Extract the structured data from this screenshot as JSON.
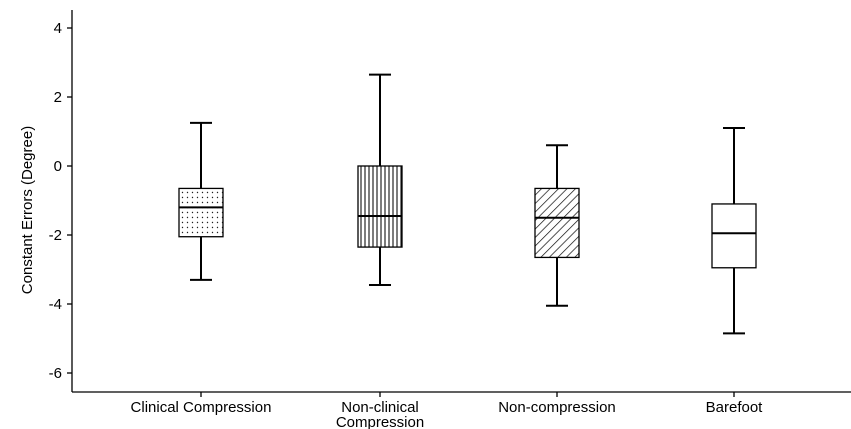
{
  "chart_data": {
    "type": "boxplot",
    "title": "",
    "xlabel": "",
    "ylabel": "Constant Errors (Degree)",
    "ylim": [
      -6.6,
      4.6
    ],
    "yticks": [
      4,
      2,
      0,
      -2,
      -4,
      -6
    ],
    "grid": false,
    "categories": [
      "Clinical Compression",
      "Non-clinical Compression",
      "Non-compression",
      "Barefoot"
    ],
    "category_lines": [
      [
        "Clinical Compression"
      ],
      [
        "Non-clinical",
        "Compression"
      ],
      [
        "Non-compression"
      ],
      [
        "Barefoot"
      ]
    ],
    "boxes": [
      {
        "category": "Clinical Compression",
        "whisker_low": -3.3,
        "q1": -2.05,
        "median": -1.2,
        "q3": -0.65,
        "whisker_high": 1.25,
        "pattern": "dots"
      },
      {
        "category": "Non-clinical Compression",
        "whisker_low": -3.45,
        "q1": -2.35,
        "median": -1.45,
        "q3": 0.0,
        "whisker_high": 2.65,
        "pattern": "vertical-lines"
      },
      {
        "category": "Non-compression",
        "whisker_low": -4.05,
        "q1": -2.65,
        "median": -1.5,
        "q3": -0.65,
        "whisker_high": 0.6,
        "pattern": "diagonal-lines"
      },
      {
        "category": "Barefoot",
        "whisker_low": -4.85,
        "q1": -2.95,
        "median": -1.95,
        "q3": -1.1,
        "whisker_high": 1.1,
        "pattern": "none"
      }
    ]
  }
}
